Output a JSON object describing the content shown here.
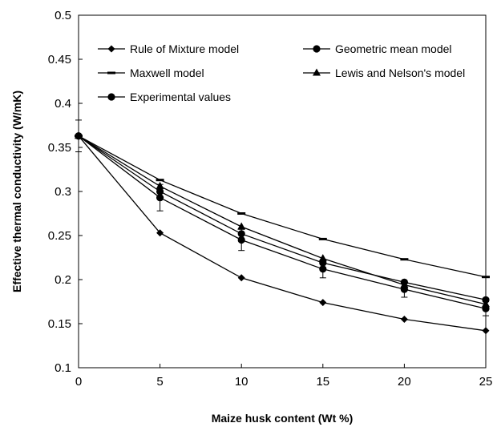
{
  "chart_data": {
    "type": "line",
    "title": "",
    "xlabel": "Maize husk content (Wt %)",
    "ylabel": "Effective thermal conductivity (W/mK)",
    "xlim": [
      0,
      25
    ],
    "ylim": [
      0.1,
      0.5
    ],
    "x_ticks": [
      0,
      5,
      10,
      15,
      20,
      25
    ],
    "y_ticks": [
      0.1,
      0.15,
      0.2,
      0.25,
      0.3,
      0.35,
      0.4,
      0.45,
      0.5
    ],
    "x_tick_labels": [
      "0",
      "5",
      "10",
      "15",
      "20",
      "25"
    ],
    "y_tick_labels": [
      "0.1",
      "0.15",
      "0.2",
      "0.25",
      "0.3",
      "0.35",
      "0.4",
      "0.45",
      "0.5"
    ],
    "grid": false,
    "legend_position": "top",
    "x": [
      0,
      5,
      10,
      15,
      20,
      25
    ],
    "series": [
      {
        "name": "Rule of Mixture model",
        "marker": "diamond",
        "values": [
          0.363,
          0.253,
          0.202,
          0.174,
          0.155,
          0.142
        ]
      },
      {
        "name": "Geometric mean model",
        "marker": "circle",
        "values": [
          0.363,
          0.3,
          0.252,
          0.219,
          0.197,
          0.177
        ]
      },
      {
        "name": "Maxwell model",
        "marker": "dash",
        "values": [
          0.363,
          0.313,
          0.275,
          0.246,
          0.223,
          0.203
        ]
      },
      {
        "name": "Lewis and Nelson's model",
        "marker": "triangle",
        "values": [
          0.363,
          0.306,
          0.26,
          0.224,
          0.194,
          0.172
        ]
      },
      {
        "name": "Experimental values",
        "marker": "circle",
        "values": [
          0.363,
          0.293,
          0.245,
          0.212,
          0.189,
          0.167
        ],
        "error": [
          0.018,
          0.015,
          0.012,
          0.01,
          0.009,
          0.008
        ]
      }
    ]
  }
}
